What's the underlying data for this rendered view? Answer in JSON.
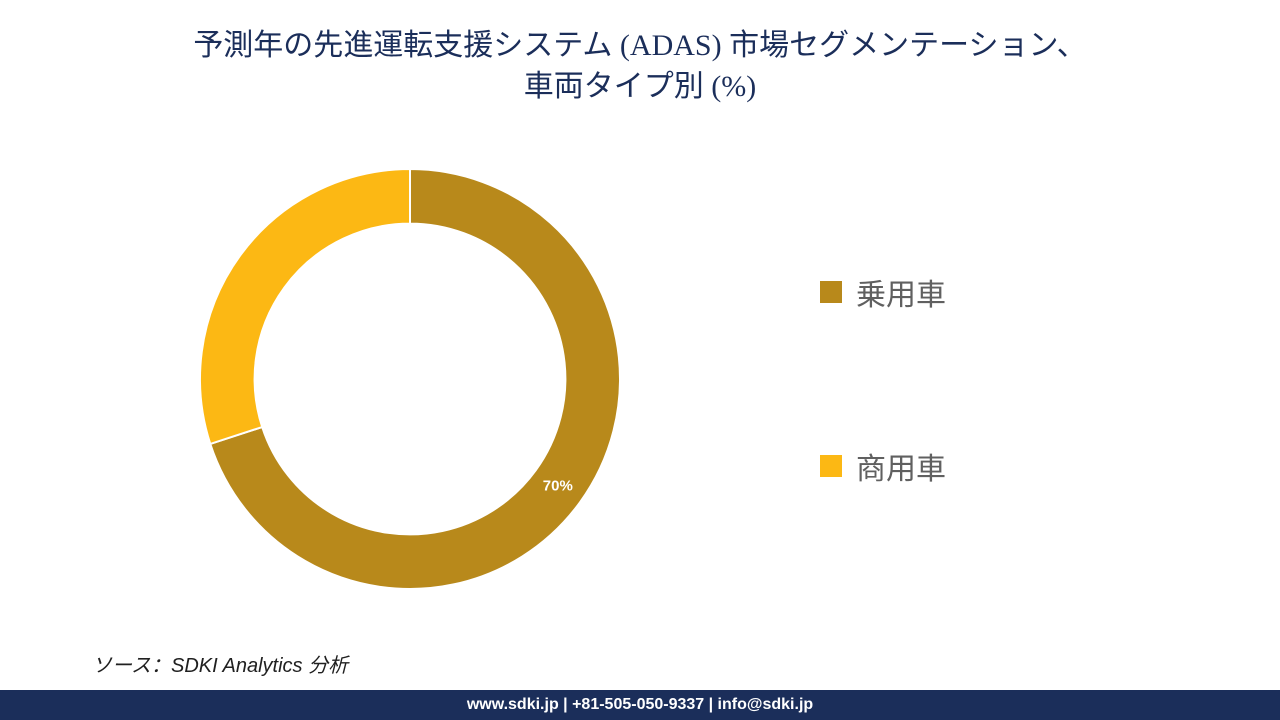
{
  "title": {
    "line1": "予測年の先進運転支援システム (ADAS) 市場セグメンテーション、",
    "line2": "車両タイプ別 (%)",
    "color": "#1b2e5a",
    "fontsize": 30
  },
  "chart": {
    "type": "donut",
    "inner_ratio": 0.74,
    "stroke_color": "#ffffff",
    "stroke_width": 2,
    "background_color": "#ffffff",
    "start_angle_deg": 0,
    "clockwise": true,
    "slices": [
      {
        "label": "乗用車",
        "value": 70,
        "color": "#b8891b",
        "show_pct": true,
        "pct_text": "70%"
      },
      {
        "label": "商用車",
        "value": 30,
        "color": "#fcb814",
        "show_pct": false,
        "pct_text": "30%"
      }
    ],
    "pct_label_style": {
      "color": "#ffffff",
      "fontsize": 15,
      "fontweight": "bold"
    },
    "legend": {
      "position": "right",
      "swatch_size": 22,
      "gap": 130,
      "label_fontsize": 30,
      "label_color": "#606060"
    }
  },
  "source": {
    "text": "ソース：SDKI Analytics 分析",
    "fontsize": 20,
    "italic": true
  },
  "footer": {
    "text": "www.sdki.jp | +81-505-050-9337 | info@sdki.jp",
    "background_color": "#1b2e5a",
    "text_color": "#ffffff",
    "fontsize": 16
  }
}
